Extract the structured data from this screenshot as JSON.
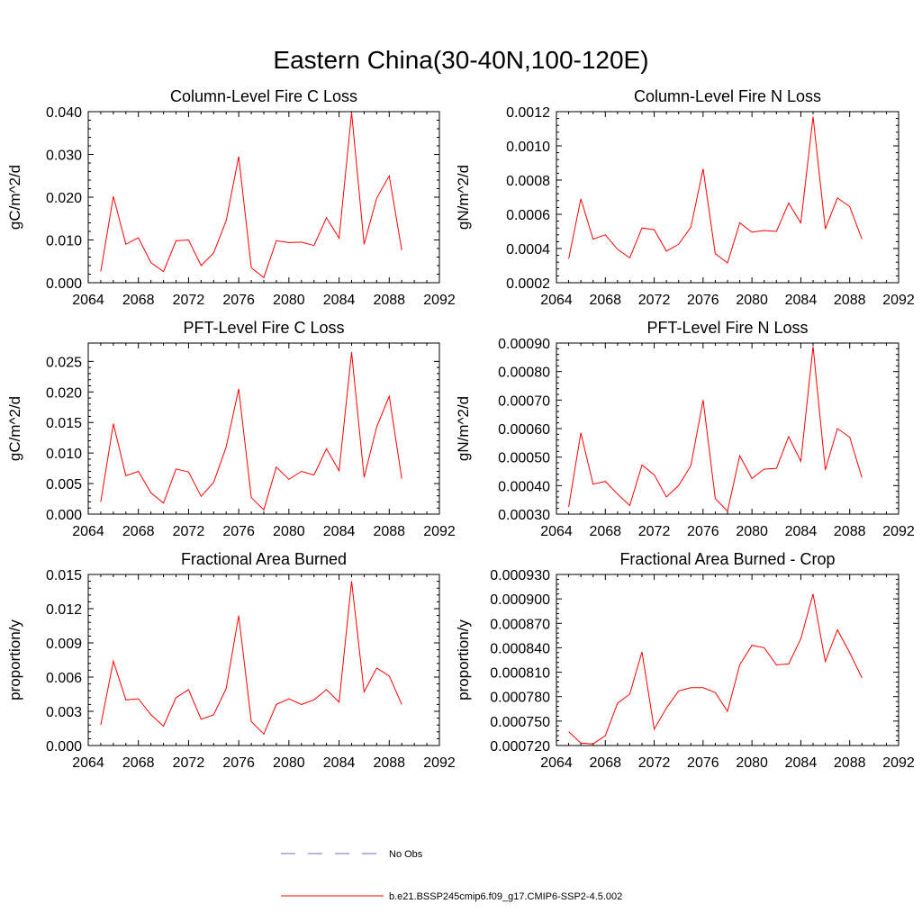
{
  "figure_title": "Eastern China(30-40N,100-120E)",
  "legend": {
    "items": [
      {
        "label": "No Obs",
        "color": "#6b6bbd",
        "style": "dashed"
      },
      {
        "label": "b.e21.BSSP245cmip6.f09_g17.CMIP6-SSP2-4.5.002",
        "color": "#ff0000",
        "style": "solid"
      }
    ]
  },
  "chart_data": [
    {
      "type": "line",
      "title": "Column-Level Fire C Loss",
      "ylabel": "gC/m^2/d",
      "xlabel": "",
      "xlim": [
        2064,
        2092
      ],
      "ylim": [
        0,
        0.04
      ],
      "xticks": [
        "2064",
        "2068",
        "2072",
        "2076",
        "2080",
        "2084",
        "2088",
        "2092"
      ],
      "yticks": [
        "0.000",
        "0.010",
        "0.020",
        "0.030",
        "0.040"
      ],
      "x": [
        2065,
        2066,
        2067,
        2068,
        2069,
        2070,
        2071,
        2072,
        2073,
        2074,
        2075,
        2076,
        2077,
        2078,
        2079,
        2080,
        2081,
        2082,
        2083,
        2084,
        2085,
        2086,
        2087,
        2088,
        2089
      ],
      "series": [
        {
          "color": "#ff0000",
          "values": [
            0.0026,
            0.0202,
            0.009,
            0.0105,
            0.0047,
            0.0026,
            0.0098,
            0.01,
            0.004,
            0.007,
            0.0145,
            0.0295,
            0.0035,
            0.0012,
            0.0098,
            0.0094,
            0.0095,
            0.0087,
            0.0152,
            0.0104,
            0.0398,
            0.009,
            0.0198,
            0.025,
            0.0076
          ]
        }
      ]
    },
    {
      "type": "line",
      "title": "Column-Level Fire N Loss",
      "ylabel": "gN/m^2/d",
      "xlabel": "",
      "xlim": [
        2064,
        2092
      ],
      "ylim": [
        0.0002,
        0.0012
      ],
      "xticks": [
        "2064",
        "2068",
        "2072",
        "2076",
        "2080",
        "2084",
        "2088",
        "2092"
      ],
      "yticks": [
        "0.0002",
        "0.0004",
        "0.0006",
        "0.0008",
        "0.0010",
        "0.0012"
      ],
      "x": [
        2065,
        2066,
        2067,
        2068,
        2069,
        2070,
        2071,
        2072,
        2073,
        2074,
        2075,
        2076,
        2077,
        2078,
        2079,
        2080,
        2081,
        2082,
        2083,
        2084,
        2085,
        2086,
        2087,
        2088,
        2089
      ],
      "series": [
        {
          "color": "#ff0000",
          "values": [
            0.00034,
            0.00069,
            0.000455,
            0.00048,
            0.000395,
            0.000345,
            0.00052,
            0.00051,
            0.000385,
            0.000425,
            0.000525,
            0.000865,
            0.00037,
            0.000315,
            0.00055,
            0.000495,
            0.000505,
            0.0005,
            0.000665,
            0.00055,
            0.00117,
            0.000515,
            0.000695,
            0.000645,
            0.000455
          ]
        }
      ]
    },
    {
      "type": "line",
      "title": "PFT-Level Fire C Loss",
      "ylabel": "gC/m^2/d",
      "xlabel": "",
      "xlim": [
        2064,
        2092
      ],
      "ylim": [
        0,
        0.028
      ],
      "xticks": [
        "2064",
        "2068",
        "2072",
        "2076",
        "2080",
        "2084",
        "2088",
        "2092"
      ],
      "yticks": [
        "0.000",
        "0.005",
        "0.010",
        "0.015",
        "0.020",
        "0.025"
      ],
      "x": [
        2065,
        2066,
        2067,
        2068,
        2069,
        2070,
        2071,
        2072,
        2073,
        2074,
        2075,
        2076,
        2077,
        2078,
        2079,
        2080,
        2081,
        2082,
        2083,
        2084,
        2085,
        2086,
        2087,
        2088,
        2089
      ],
      "series": [
        {
          "color": "#ff0000",
          "values": [
            0.002,
            0.0148,
            0.0063,
            0.007,
            0.0035,
            0.0018,
            0.0074,
            0.0069,
            0.0029,
            0.0052,
            0.011,
            0.0205,
            0.0027,
            0.0007,
            0.0077,
            0.0057,
            0.007,
            0.0064,
            0.0107,
            0.0071,
            0.0265,
            0.006,
            0.0143,
            0.0193,
            0.0058
          ]
        }
      ]
    },
    {
      "type": "line",
      "title": "PFT-Level Fire N Loss",
      "ylabel": "gN/m^2/d",
      "xlabel": "",
      "xlim": [
        2064,
        2092
      ],
      "ylim": [
        0.0003,
        0.0009
      ],
      "xticks": [
        "2064",
        "2068",
        "2072",
        "2076",
        "2080",
        "2084",
        "2088",
        "2092"
      ],
      "yticks": [
        "0.00030",
        "0.00040",
        "0.00050",
        "0.00060",
        "0.00070",
        "0.00080",
        "0.00090"
      ],
      "x": [
        2065,
        2066,
        2067,
        2068,
        2069,
        2070,
        2071,
        2072,
        2073,
        2074,
        2075,
        2076,
        2077,
        2078,
        2079,
        2080,
        2081,
        2082,
        2083,
        2084,
        2085,
        2086,
        2087,
        2088,
        2089
      ],
      "series": [
        {
          "color": "#ff0000",
          "values": [
            0.000325,
            0.000585,
            0.000405,
            0.000415,
            0.00037,
            0.00033,
            0.000472,
            0.000438,
            0.00036,
            0.0004,
            0.00047,
            0.0007,
            0.000355,
            0.00031,
            0.000505,
            0.000425,
            0.000458,
            0.00046,
            0.000572,
            0.000485,
            0.000888,
            0.000455,
            0.0006,
            0.00057,
            0.000428
          ]
        }
      ]
    },
    {
      "type": "line",
      "title": "Fractional Area Burned",
      "ylabel": "proportion/y",
      "xlabel": "",
      "xlim": [
        2064,
        2092
      ],
      "ylim": [
        0,
        0.015
      ],
      "xticks": [
        "2064",
        "2068",
        "2072",
        "2076",
        "2080",
        "2084",
        "2088",
        "2092"
      ],
      "yticks": [
        "0.000",
        "0.003",
        "0.006",
        "0.009",
        "0.012",
        "0.015"
      ],
      "x": [
        2065,
        2066,
        2067,
        2068,
        2069,
        2070,
        2071,
        2072,
        2073,
        2074,
        2075,
        2076,
        2077,
        2078,
        2079,
        2080,
        2081,
        2082,
        2083,
        2084,
        2085,
        2086,
        2087,
        2088,
        2089
      ],
      "series": [
        {
          "color": "#ff0000",
          "values": [
            0.0018,
            0.0074,
            0.004,
            0.0041,
            0.0027,
            0.0017,
            0.0042,
            0.0049,
            0.0023,
            0.0027,
            0.005,
            0.0114,
            0.0021,
            0.001,
            0.0036,
            0.0041,
            0.0036,
            0.004,
            0.0049,
            0.0038,
            0.0144,
            0.0047,
            0.0068,
            0.0061,
            0.0036
          ]
        }
      ]
    },
    {
      "type": "line",
      "title": "Fractional Area Burned - Crop",
      "ylabel": "proportion/y",
      "xlabel": "",
      "xlim": [
        2064,
        2092
      ],
      "ylim": [
        0.00072,
        0.00093
      ],
      "xticks": [
        "2064",
        "2068",
        "2072",
        "2076",
        "2080",
        "2084",
        "2088",
        "2092"
      ],
      "yticks": [
        "0.000720",
        "0.000750",
        "0.000780",
        "0.000810",
        "0.000840",
        "0.000870",
        "0.000900",
        "0.000930"
      ],
      "x": [
        2065,
        2066,
        2067,
        2068,
        2069,
        2070,
        2071,
        2072,
        2073,
        2074,
        2075,
        2076,
        2077,
        2078,
        2079,
        2080,
        2081,
        2082,
        2083,
        2084,
        2085,
        2086,
        2087,
        2088,
        2089
      ],
      "series": [
        {
          "color": "#ff0000",
          "values": [
            0.000737,
            0.000723,
            0.000722,
            0.000732,
            0.000772,
            0.000783,
            0.000835,
            0.00074,
            0.000766,
            0.000787,
            0.000791,
            0.000791,
            0.000785,
            0.000762,
            0.000819,
            0.000843,
            0.00084,
            0.000819,
            0.00082,
            0.000851,
            0.000906,
            0.000823,
            0.000862,
            0.000834,
            0.000803
          ]
        }
      ]
    }
  ]
}
